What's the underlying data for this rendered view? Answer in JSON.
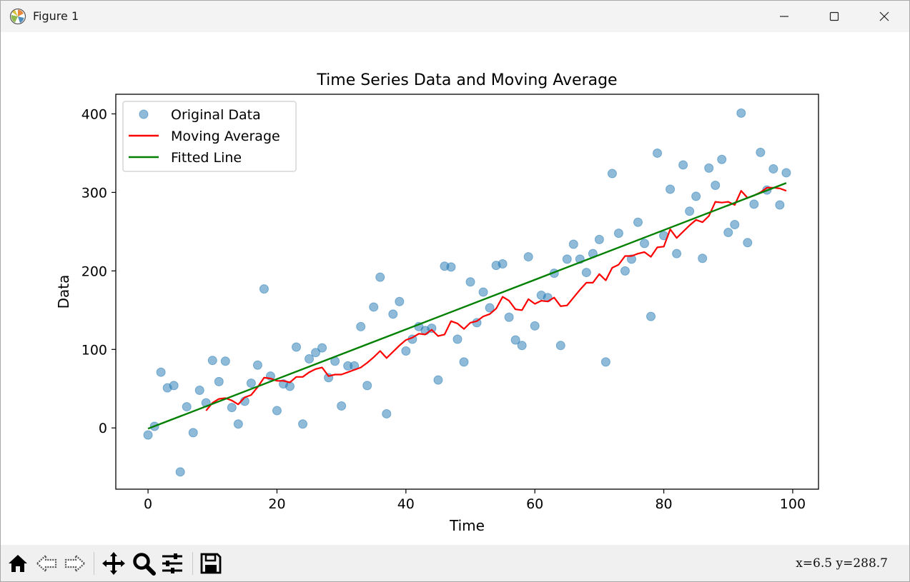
{
  "window": {
    "title": "Figure 1"
  },
  "toolbar": {
    "coords": "x=6.5  y=288.7"
  },
  "colors": {
    "scatter": "#1f77b4",
    "moving_average": "#ff0000",
    "fitted": "#008000"
  },
  "icons": [
    "home-icon",
    "back-arrow-icon",
    "forward-arrow-icon",
    "pan-icon",
    "zoom-icon",
    "configure-subplots-icon",
    "save-icon"
  ],
  "chart_data": {
    "type": "scatter",
    "title": "Time Series Data and Moving Average",
    "xlabel": "Time",
    "ylabel": "Data",
    "xlim": [
      -5,
      104
    ],
    "ylim": [
      -78,
      425
    ],
    "xticks": [
      0,
      20,
      40,
      60,
      80,
      100
    ],
    "yticks": [
      0,
      100,
      200,
      300,
      400
    ],
    "grid": false,
    "legend_position": "top-left",
    "series": [
      {
        "name": "Original Data",
        "type": "scatter",
        "x": [
          0,
          1,
          2,
          3,
          4,
          5,
          6,
          7,
          8,
          9,
          10,
          11,
          12,
          13,
          14,
          15,
          16,
          17,
          18,
          19,
          20,
          21,
          22,
          23,
          24,
          25,
          26,
          27,
          28,
          29,
          30,
          31,
          32,
          33,
          34,
          35,
          36,
          37,
          38,
          39,
          40,
          41,
          42,
          43,
          44,
          45,
          46,
          47,
          48,
          49,
          50,
          51,
          52,
          53,
          54,
          55,
          56,
          57,
          58,
          59,
          60,
          61,
          62,
          63,
          64,
          65,
          66,
          67,
          68,
          69,
          70,
          71,
          72,
          73,
          74,
          75,
          76,
          77,
          78,
          79,
          80,
          81,
          82,
          83,
          84,
          85,
          86,
          87,
          88,
          89,
          90,
          91,
          92,
          93,
          94,
          95,
          96,
          97,
          98,
          99
        ],
        "y": [
          -9,
          2,
          71,
          51,
          54,
          -56,
          27,
          -6,
          48,
          32,
          86,
          59,
          85,
          26,
          5,
          34,
          57,
          80,
          177,
          66,
          22,
          56,
          53,
          103,
          5,
          88,
          96,
          102,
          64,
          85,
          28,
          79,
          79,
          129,
          54,
          154,
          192,
          18,
          145,
          161,
          98,
          113,
          129,
          124,
          127,
          61,
          206,
          205,
          113,
          84,
          186,
          134,
          173,
          153,
          207,
          209,
          141,
          112,
          105,
          218,
          130,
          169,
          166,
          197,
          105,
          215,
          234,
          215,
          198,
          222,
          240,
          84,
          324,
          248,
          200,
          215,
          262,
          235,
          142,
          350,
          245,
          304,
          222,
          335,
          276,
          295,
          216,
          331,
          309,
          342,
          249,
          259,
          401,
          236,
          285,
          351,
          303,
          330,
          284,
          325
        ]
      },
      {
        "name": "Moving Average",
        "type": "line",
        "x": [
          9,
          10,
          11,
          12,
          13,
          14,
          15,
          16,
          17,
          18,
          19,
          20,
          21,
          22,
          23,
          24,
          25,
          26,
          27,
          28,
          29,
          30,
          31,
          32,
          33,
          34,
          35,
          36,
          37,
          38,
          39,
          40,
          41,
          42,
          43,
          44,
          45,
          46,
          47,
          48,
          49,
          50,
          51,
          52,
          53,
          54,
          55,
          56,
          57,
          58,
          59,
          60,
          61,
          62,
          63,
          64,
          65,
          66,
          67,
          68,
          69,
          70,
          71,
          72,
          73,
          74,
          75,
          76,
          77,
          78,
          79,
          80,
          81,
          82,
          83,
          84,
          85,
          86,
          87,
          88,
          89,
          90,
          91,
          92,
          93,
          94,
          95,
          96,
          97,
          98,
          99
        ],
        "y": [
          22,
          32,
          37,
          38,
          35,
          30,
          39,
          42,
          52,
          64,
          63,
          60,
          60,
          58,
          65,
          65,
          71,
          75,
          77,
          66,
          68,
          68,
          71,
          74,
          77,
          83,
          90,
          98,
          89,
          97,
          105,
          112,
          115,
          120,
          119,
          125,
          117,
          119,
          136,
          133,
          126,
          134,
          136,
          142,
          145,
          152,
          167,
          162,
          151,
          150,
          164,
          158,
          162,
          161,
          166,
          155,
          156,
          166,
          176,
          185,
          185,
          196,
          188,
          204,
          208,
          219,
          219,
          222,
          224,
          218,
          230,
          231,
          253,
          242,
          250,
          258,
          265,
          262,
          270,
          288,
          287,
          288,
          284,
          302,
          293,
          296,
          300,
          306,
          306,
          305,
          302
        ]
      },
      {
        "name": "Fitted Line",
        "type": "line",
        "x": [
          0,
          99
        ],
        "y": [
          -1,
          312
        ]
      }
    ]
  }
}
